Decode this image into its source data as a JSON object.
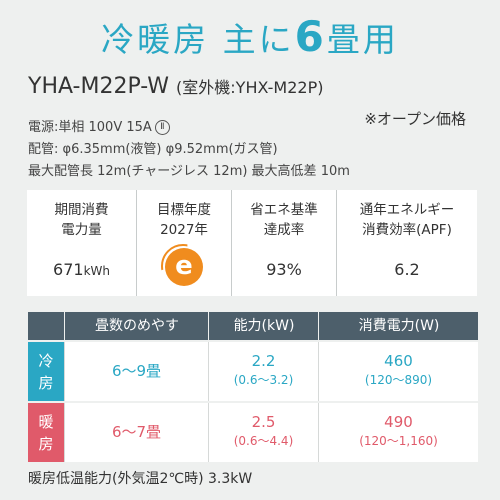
{
  "heading": {
    "part1": "冷暖房 主に",
    "number": "6",
    "part2": "畳用"
  },
  "model": {
    "name": "YHA-M22P-W",
    "outdoor": "(室外機:YHX-M22P)"
  },
  "price_note": "※オープン価格",
  "specs": {
    "power": "電源:単相 100V 15A",
    "power_mark": "Ⅱ",
    "piping": "配管: φ6.35mm(液管) φ9.52mm(ガス管)",
    "max_length": "最大配管長 12m(チャージレス 12m) 最大高低差 10m"
  },
  "cards": [
    {
      "label_line1": "期間消費",
      "label_line2": "電力量",
      "value": "671",
      "unit": "kWh"
    },
    {
      "label_line1": "目標年度",
      "label_line2": "2027年",
      "badge": "e"
    },
    {
      "label_line1": "省エネ基準",
      "label_line2": "達成率",
      "value": "93%"
    },
    {
      "label_line1": "通年エネルギー",
      "label_line2": "消費効率(APF)",
      "value": "6.2"
    }
  ],
  "table": {
    "headers": [
      "畳数のめやす",
      "能力(kW)",
      "消費電力(W)"
    ],
    "rows": [
      {
        "label_top": "冷",
        "label_bottom": "房",
        "area": "6〜9畳",
        "capacity": "2.2",
        "capacity_range": "(0.6〜3.2)",
        "power": "460",
        "power_range": "(120〜890)",
        "color": "#2aa7c4"
      },
      {
        "label_top": "暖",
        "label_bottom": "房",
        "area": "6〜7畳",
        "capacity": "2.5",
        "capacity_range": "(0.6〜4.4)",
        "power": "490",
        "power_range": "(120〜1,160)",
        "color": "#e05a6a"
      }
    ]
  },
  "footer": "暖房低温能力(外気温2℃時) 3.3kW"
}
